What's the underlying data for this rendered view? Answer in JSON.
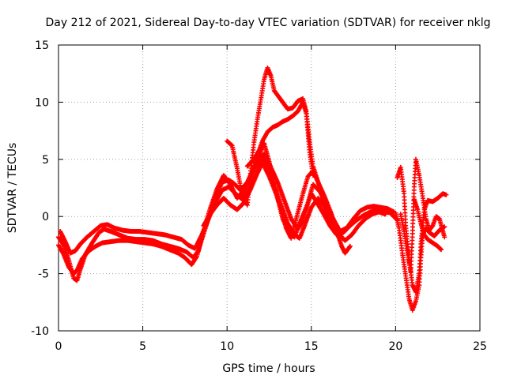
{
  "chart_data": {
    "type": "scatter",
    "title": "Day 212 of 2021, Sidereal Day-to-day VTEC variation (SDTVAR) for receiver nklg",
    "xlabel": "GPS time / hours",
    "ylabel": "SDTVAR / TECUs",
    "xlim": [
      0,
      25
    ],
    "ylim": [
      -10,
      15
    ],
    "xticks": [
      "0",
      "5",
      "10",
      "15",
      "20",
      "25"
    ],
    "yticks": [
      "-10",
      "-5",
      "0",
      "5",
      "10",
      "15"
    ],
    "grid": true,
    "marker": "plus",
    "color": "#ff0000",
    "series": [
      {
        "name": "trace-a",
        "points": [
          [
            0.0,
            -1.8
          ],
          [
            0.3,
            -2.5
          ],
          [
            0.6,
            -3.8
          ],
          [
            0.9,
            -5.4
          ],
          [
            1.1,
            -5.6
          ],
          [
            1.3,
            -4.6
          ],
          [
            1.6,
            -3.3
          ],
          [
            2.0,
            -2.3
          ],
          [
            2.4,
            -1.4
          ],
          [
            2.7,
            -1.1
          ],
          [
            3.1,
            -1.3
          ],
          [
            3.6,
            -1.6
          ],
          [
            4.1,
            -1.9
          ],
          [
            4.6,
            -2.0
          ],
          [
            5.1,
            -2.0
          ],
          [
            5.6,
            -2.1
          ],
          [
            6.1,
            -2.4
          ],
          [
            6.6,
            -2.6
          ],
          [
            7.1,
            -2.8
          ],
          [
            7.6,
            -3.1
          ],
          [
            8.0,
            -3.6
          ],
          [
            8.3,
            -3.0
          ],
          [
            8.6,
            -1.3
          ],
          [
            9.0,
            0.7
          ],
          [
            9.4,
            2.4
          ],
          [
            9.8,
            3.6
          ],
          [
            10.2,
            2.8
          ],
          [
            10.6,
            1.6
          ],
          [
            11.0,
            2.3
          ],
          [
            11.4,
            3.6
          ],
          [
            11.8,
            5.1
          ],
          [
            12.2,
            6.4
          ],
          [
            12.5,
            4.8
          ],
          [
            12.9,
            2.2
          ],
          [
            13.3,
            -0.2
          ],
          [
            13.7,
            -1.4
          ],
          [
            14.0,
            -1.8
          ],
          [
            14.3,
            -0.6
          ],
          [
            14.7,
            0.8
          ],
          [
            15.0,
            2.0
          ],
          [
            15.3,
            1.3
          ],
          [
            15.7,
            0.3
          ],
          [
            16.1,
            -0.8
          ],
          [
            16.5,
            -1.6
          ],
          [
            16.9,
            -1.4
          ],
          [
            17.3,
            -0.8
          ],
          [
            17.7,
            -0.3
          ],
          [
            18.1,
            0.1
          ],
          [
            18.5,
            0.4
          ],
          [
            18.9,
            0.6
          ],
          [
            19.3,
            0.5
          ],
          [
            19.7,
            0.3
          ],
          [
            20.1,
            -0.3
          ]
        ]
      },
      {
        "name": "trace-b",
        "points": [
          [
            0.0,
            -2.5
          ],
          [
            0.3,
            -3.3
          ],
          [
            0.6,
            -4.4
          ],
          [
            0.9,
            -5.0
          ],
          [
            1.1,
            -4.7
          ],
          [
            1.4,
            -3.7
          ],
          [
            1.8,
            -3.0
          ],
          [
            2.2,
            -2.6
          ],
          [
            2.6,
            -2.3
          ],
          [
            3.1,
            -2.2
          ],
          [
            3.6,
            -2.1
          ],
          [
            4.1,
            -2.1
          ],
          [
            4.6,
            -2.2
          ],
          [
            5.1,
            -2.3
          ],
          [
            5.6,
            -2.4
          ],
          [
            6.1,
            -2.6
          ],
          [
            6.6,
            -2.9
          ],
          [
            7.1,
            -3.2
          ],
          [
            7.5,
            -3.6
          ],
          [
            7.9,
            -4.2
          ],
          [
            8.2,
            -3.5
          ],
          [
            8.5,
            -2.0
          ],
          [
            8.9,
            -0.2
          ],
          [
            9.3,
            1.2
          ],
          [
            9.7,
            2.3
          ],
          [
            10.1,
            2.6
          ],
          [
            10.5,
            2.0
          ],
          [
            10.9,
            1.5
          ],
          [
            11.3,
            2.4
          ],
          [
            11.7,
            3.7
          ],
          [
            12.1,
            5.1
          ],
          [
            12.4,
            4.3
          ],
          [
            12.8,
            2.7
          ],
          [
            13.2,
            1.0
          ],
          [
            13.6,
            -0.6
          ],
          [
            14.0,
            -1.6
          ],
          [
            14.3,
            -1.9
          ],
          [
            14.6,
            -0.8
          ],
          [
            15.0,
            0.8
          ],
          [
            15.4,
            1.6
          ],
          [
            15.8,
            0.8
          ],
          [
            16.2,
            -0.4
          ],
          [
            16.6,
            -1.5
          ],
          [
            17.0,
            -2.1
          ],
          [
            17.4,
            -1.6
          ],
          [
            17.8,
            -0.8
          ],
          [
            18.2,
            -0.2
          ],
          [
            18.6,
            0.2
          ],
          [
            19.0,
            0.4
          ],
          [
            19.4,
            0.2
          ]
        ]
      },
      {
        "name": "trace-c",
        "points": [
          [
            0.1,
            -1.3
          ],
          [
            0.4,
            -2.2
          ],
          [
            0.7,
            -3.2
          ],
          [
            1.0,
            -3.0
          ],
          [
            1.3,
            -2.4
          ],
          [
            1.7,
            -1.8
          ],
          [
            2.1,
            -1.3
          ],
          [
            2.5,
            -0.8
          ],
          [
            2.9,
            -0.7
          ],
          [
            3.3,
            -1.0
          ],
          [
            3.8,
            -1.2
          ],
          [
            4.3,
            -1.3
          ],
          [
            4.8,
            -1.3
          ],
          [
            5.3,
            -1.4
          ],
          [
            5.8,
            -1.5
          ],
          [
            6.3,
            -1.6
          ],
          [
            6.8,
            -1.8
          ],
          [
            7.3,
            -2.0
          ],
          [
            7.7,
            -2.5
          ],
          [
            8.1,
            -2.8
          ],
          [
            8.5,
            -1.6
          ],
          [
            8.9,
            -0.2
          ],
          [
            9.3,
            1.5
          ],
          [
            9.7,
            3.0
          ],
          [
            10.1,
            3.2
          ],
          [
            10.4,
            2.9
          ],
          [
            10.8,
            2.3
          ],
          [
            11.2,
            3.0
          ],
          [
            11.6,
            4.2
          ],
          [
            11.9,
            5.0
          ],
          [
            12.2,
            5.5
          ],
          [
            12.6,
            4.3
          ],
          [
            13.0,
            3.0
          ],
          [
            13.4,
            1.4
          ],
          [
            13.8,
            -0.2
          ],
          [
            14.2,
            -1.1
          ],
          [
            14.5,
            -0.4
          ],
          [
            14.8,
            1.2
          ],
          [
            15.1,
            2.8
          ],
          [
            15.5,
            2.2
          ],
          [
            15.9,
            1.0
          ],
          [
            16.3,
            -0.2
          ],
          [
            16.7,
            -1.3
          ],
          [
            17.1,
            -1.0
          ],
          [
            17.5,
            -0.2
          ],
          [
            17.9,
            0.5
          ],
          [
            18.3,
            0.8
          ],
          [
            18.7,
            0.9
          ],
          [
            19.1,
            0.8
          ],
          [
            19.5,
            0.7
          ],
          [
            19.9,
            0.4
          ]
        ]
      },
      {
        "name": "trace-d",
        "points": [
          [
            8.6,
            -0.8
          ],
          [
            9.0,
            0.2
          ],
          [
            9.4,
            1.0
          ],
          [
            9.8,
            1.6
          ],
          [
            10.2,
            1.0
          ],
          [
            10.6,
            0.6
          ],
          [
            11.0,
            1.2
          ],
          [
            11.4,
            2.4
          ],
          [
            11.8,
            3.8
          ],
          [
            12.1,
            4.7
          ],
          [
            12.5,
            3.5
          ],
          [
            12.9,
            2.0
          ],
          [
            13.2,
            0.7
          ],
          [
            13.5,
            -1.0
          ],
          [
            13.8,
            -1.9
          ],
          [
            14.1,
            -0.2
          ],
          [
            14.5,
            2.0
          ],
          [
            14.8,
            3.5
          ],
          [
            15.1,
            4.0
          ],
          [
            15.4,
            3.0
          ],
          [
            15.8,
            1.7
          ],
          [
            16.2,
            0.2
          ],
          [
            16.5,
            -1.3
          ],
          [
            16.8,
            -2.6
          ],
          [
            17.0,
            -3.2
          ],
          [
            17.3,
            -2.6
          ]
        ]
      },
      {
        "name": "trace-peak",
        "points": [
          [
            10.0,
            6.6
          ],
          [
            10.3,
            6.2
          ],
          [
            10.6,
            4.2
          ],
          [
            10.9,
            1.8
          ],
          [
            11.2,
            1.0
          ],
          [
            11.4,
            4.0
          ],
          [
            11.6,
            6.5
          ],
          [
            11.8,
            8.5
          ],
          [
            12.0,
            10.2
          ],
          [
            12.2,
            12.0
          ],
          [
            12.4,
            13.0
          ],
          [
            12.6,
            12.3
          ],
          [
            12.8,
            11.0
          ],
          [
            13.0,
            10.6
          ],
          [
            13.3,
            10.0
          ],
          [
            13.6,
            9.4
          ],
          [
            13.9,
            9.5
          ],
          [
            14.2,
            10.1
          ],
          [
            14.5,
            10.3
          ],
          [
            14.7,
            9.2
          ],
          [
            14.9,
            6.5
          ],
          [
            15.1,
            4.4
          ],
          [
            15.4,
            3.0
          ],
          [
            15.7,
            1.4
          ],
          [
            16.0,
            -0.4
          ],
          [
            16.3,
            -1.2
          ],
          [
            16.6,
            -1.6
          ]
        ]
      },
      {
        "name": "trace-mid",
        "points": [
          [
            11.2,
            4.4
          ],
          [
            11.6,
            5.0
          ],
          [
            11.9,
            5.8
          ],
          [
            12.1,
            6.6
          ],
          [
            12.4,
            7.4
          ],
          [
            12.7,
            7.8
          ],
          [
            13.0,
            8.0
          ],
          [
            13.3,
            8.3
          ],
          [
            13.6,
            8.5
          ],
          [
            13.9,
            8.8
          ],
          [
            14.2,
            9.2
          ],
          [
            14.5,
            10.0
          ],
          [
            14.7,
            9.0
          ],
          [
            14.9,
            5.6
          ],
          [
            15.1,
            3.6
          ]
        ]
      },
      {
        "name": "trace-end-a",
        "points": [
          [
            20.0,
            0.3
          ],
          [
            20.2,
            -1.0
          ],
          [
            20.4,
            -3.2
          ],
          [
            20.6,
            -5.2
          ],
          [
            20.8,
            -7.2
          ],
          [
            21.0,
            -8.2
          ],
          [
            21.2,
            -7.4
          ],
          [
            21.4,
            -6.0
          ],
          [
            21.5,
            -3.6
          ],
          [
            21.6,
            -1.6
          ],
          [
            21.8,
            -1.0
          ],
          [
            22.0,
            -1.4
          ],
          [
            22.3,
            -1.7
          ],
          [
            22.6,
            -1.2
          ],
          [
            22.9,
            -0.9
          ]
        ]
      },
      {
        "name": "trace-end-b",
        "points": [
          [
            20.1,
            3.4
          ],
          [
            20.3,
            4.3
          ],
          [
            20.5,
            2.0
          ],
          [
            20.6,
            -0.8
          ],
          [
            20.8,
            -3.8
          ],
          [
            21.0,
            -6.0
          ],
          [
            21.2,
            -6.6
          ],
          [
            21.4,
            -5.0
          ],
          [
            21.5,
            -2.4
          ],
          [
            21.7,
            0.6
          ],
          [
            21.9,
            1.4
          ],
          [
            22.2,
            1.3
          ],
          [
            22.5,
            1.6
          ],
          [
            22.8,
            2.0
          ],
          [
            23.0,
            1.9
          ]
        ]
      },
      {
        "name": "trace-end-c",
        "points": [
          [
            20.3,
            0.2
          ],
          [
            20.5,
            -1.3
          ],
          [
            20.7,
            -3.2
          ],
          [
            20.9,
            -4.8
          ],
          [
            21.0,
            -1.5
          ],
          [
            21.1,
            2.6
          ],
          [
            21.2,
            5.0
          ],
          [
            21.4,
            3.6
          ],
          [
            21.6,
            1.8
          ],
          [
            21.8,
            -0.2
          ],
          [
            22.0,
            -1.2
          ],
          [
            22.2,
            -0.8
          ],
          [
            22.4,
            0.0
          ],
          [
            22.6,
            -0.2
          ],
          [
            22.9,
            -1.8
          ]
        ]
      },
      {
        "name": "trace-end-d",
        "points": [
          [
            21.1,
            1.5
          ],
          [
            21.3,
            0.6
          ],
          [
            21.5,
            -0.6
          ],
          [
            21.7,
            -1.6
          ],
          [
            21.9,
            -2.0
          ],
          [
            22.1,
            -2.2
          ],
          [
            22.3,
            -2.4
          ],
          [
            22.5,
            -2.6
          ],
          [
            22.7,
            -2.9
          ]
        ]
      }
    ]
  }
}
